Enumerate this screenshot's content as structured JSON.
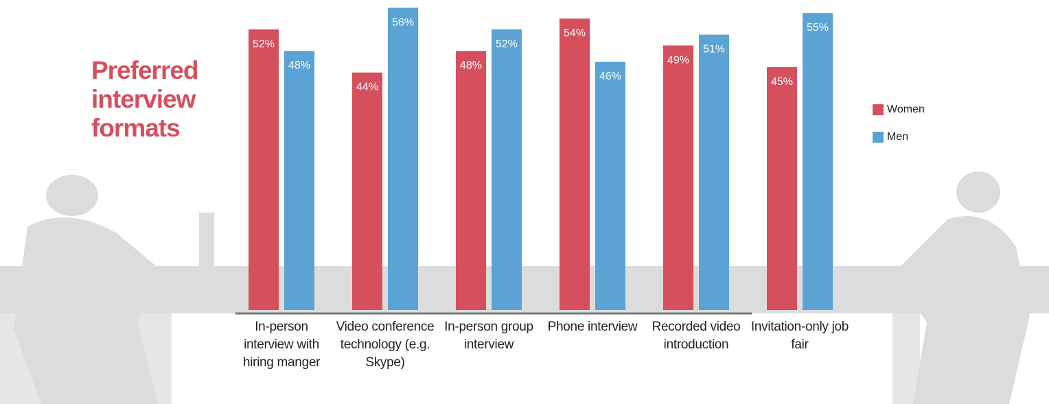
{
  "chart_data": {
    "type": "bar",
    "title": "Preferred interview formats",
    "categories": [
      "In-person interview with hiring manger",
      "Video conference technology (e.g. Skype)",
      "In-person group interview",
      "Phone interview",
      "Recorded video introduction",
      "Invitation-only job fair"
    ],
    "series": [
      {
        "name": "Women",
        "color": "#d64f5c",
        "values": [
          52,
          44,
          48,
          54,
          49,
          45
        ],
        "value_labels": [
          "52%",
          "44%",
          "48%",
          "54%",
          "49%",
          "45%"
        ]
      },
      {
        "name": "Men",
        "color": "#5ba3d5",
        "values": [
          48,
          56,
          52,
          46,
          51,
          55
        ],
        "value_labels": [
          "48%",
          "56%",
          "52%",
          "46%",
          "51%",
          "55%"
        ]
      }
    ],
    "legend": "right"
  }
}
